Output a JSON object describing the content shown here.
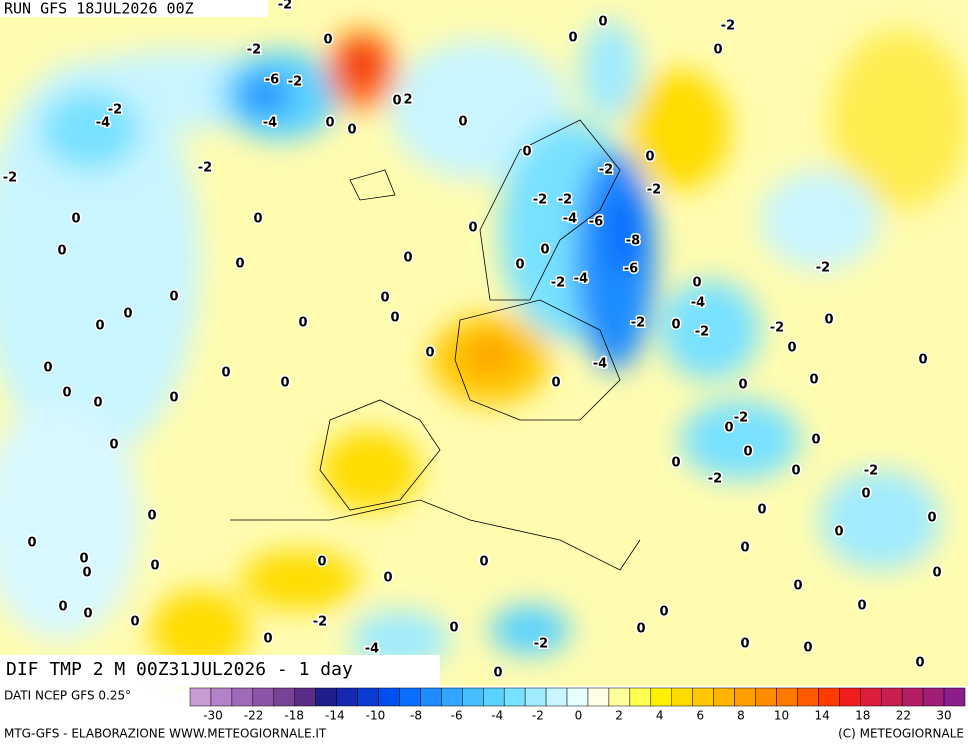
{
  "header": {
    "run": "RUN GFS 18JUL2026 00Z",
    "field": "DIF TMP 2 M 00Z31JUL2026 - 1 day"
  },
  "footer": {
    "source": "DATI NCEP GFS 0.25°",
    "credit": "MTG-GFS - ELABORAZIONE WWW.METEOGIORNALE.IT",
    "copyright": "(C) METEOGIORNALE"
  },
  "legend": {
    "colors": [
      "#c89bd6",
      "#b482c8",
      "#a06ab8",
      "#8c55a8",
      "#784296",
      "#5a2d88",
      "#1e1e8c",
      "#1428b4",
      "#0a3cd2",
      "#0050f0",
      "#0a6eff",
      "#1e8cff",
      "#32a5ff",
      "#46beff",
      "#5ad2ff",
      "#78e1ff",
      "#a0ebff",
      "#c8f5ff",
      "#e6ffff",
      "#ffffe6",
      "#ffff9b",
      "#ffff50",
      "#fff000",
      "#ffdc00",
      "#ffc800",
      "#ffb400",
      "#ffa000",
      "#ff8c00",
      "#ff7800",
      "#ff5a00",
      "#ff3c00",
      "#f01e1e",
      "#dc1e3c",
      "#c81e50",
      "#b41e64",
      "#a01e78",
      "#8c1e8c"
    ],
    "ticks": [
      -30,
      -22,
      -18,
      -14,
      -10,
      -8,
      -6,
      -4,
      -2,
      0,
      2,
      4,
      6,
      8,
      10,
      14,
      18,
      22,
      30
    ]
  },
  "contour_labels": [
    "-2",
    "0",
    "-2",
    "0",
    "0",
    "0",
    "-2",
    "-6",
    "-2",
    "2",
    "0",
    "-2",
    "-4",
    "-4",
    "0",
    "0",
    "0",
    "-2",
    "0",
    "-2",
    "0",
    "-2",
    "-2",
    "-2",
    "-2",
    "-4",
    "-6",
    "-8",
    "-6",
    "0",
    "0",
    "0",
    "0",
    "0",
    "0",
    "0",
    "0",
    "-2",
    "-4",
    "0",
    "-2",
    "0",
    "0",
    "-4",
    "0",
    "0",
    "0",
    "0",
    "-2",
    "0",
    "-2",
    "-2",
    "0",
    "0",
    "0",
    "-4",
    "0",
    "0",
    "0",
    "0",
    "0",
    "0",
    "0",
    "0",
    "0",
    "0",
    "-2",
    "0",
    "0",
    "0",
    "0",
    "0",
    "-2",
    "0",
    "-2",
    "0",
    "0",
    "0",
    "0",
    "0",
    "0",
    "0",
    "0",
    "0",
    "0",
    "0",
    "0",
    "0",
    "0",
    "0",
    "0",
    "0",
    "0",
    "0",
    "0",
    "-2",
    "0",
    "0",
    "0",
    "-4",
    "-2",
    "0",
    "0",
    "0",
    "0"
  ]
}
